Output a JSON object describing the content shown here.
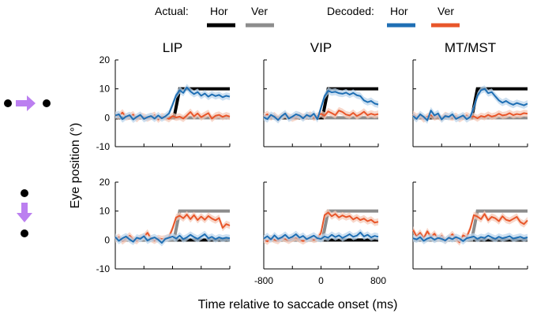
{
  "legend": {
    "actual_label": "Actual:",
    "decoded_label": "Decoded:",
    "entries": [
      {
        "group": "actual",
        "label": "Hor",
        "color": "#000000"
      },
      {
        "group": "actual",
        "label": "Ver",
        "color": "#8c8c8c"
      },
      {
        "group": "decoded",
        "label": "Hor",
        "color": "#1f6fb4"
      },
      {
        "group": "decoded",
        "label": "Ver",
        "color": "#e8562a"
      }
    ]
  },
  "ylabel": "Eye position (°)",
  "xlabel": "Time relative to saccade onset (ms)",
  "colors": {
    "actual_hor": "#000000",
    "actual_ver": "#8c8c8c",
    "decoded_hor": "#1f6fb4",
    "decoded_ver": "#e8562a",
    "band_hor": "#bcd6ec",
    "band_ver": "#f6c9b8",
    "saccade_icon": "#bb7ff0"
  },
  "chart_data": {
    "type": "line",
    "columns": [
      "LIP",
      "VIP",
      "MT/MST"
    ],
    "rows": [
      {
        "condition": "horizontal saccade",
        "actual_hor": 10,
        "actual_ver": 0
      },
      {
        "condition": "vertical saccade",
        "actual_hor": 0,
        "actual_ver": 10
      }
    ],
    "xlim": [
      -800,
      800
    ],
    "ylim": [
      -10,
      20
    ],
    "yticks": [
      -10,
      0,
      10,
      20
    ],
    "xtick_labels": [
      "-800",
      "0",
      "800"
    ],
    "x": [
      -800,
      -750,
      -700,
      -650,
      -600,
      -550,
      -500,
      -450,
      -400,
      -350,
      -300,
      -250,
      -200,
      -150,
      -100,
      -50,
      0,
      50,
      100,
      150,
      200,
      250,
      300,
      350,
      400,
      450,
      500,
      550,
      600,
      650,
      700,
      750,
      800
    ],
    "panels": [
      {
        "row": 0,
        "col": 0,
        "decoded_hor": [
          0.8,
          1.2,
          -0.5,
          0.4,
          0.9,
          -0.6,
          0.3,
          1.0,
          -0.4,
          0.2,
          0.6,
          -0.3,
          0.8,
          -0.2,
          0.5,
          1.5,
          4.5,
          7.8,
          9.5,
          8.6,
          10.5,
          9.1,
          8.2,
          8.9,
          7.6,
          8.4,
          7.3,
          8.1,
          7.5,
          7.9,
          7.1,
          7.6,
          7.3
        ],
        "decoded_ver": [
          1.0,
          0.6,
          1.8,
          0.2,
          0.5,
          1.1,
          -0.4,
          0.7,
          0.3,
          -0.2,
          0.4,
          0.9,
          -0.6,
          0.5,
          0.2,
          -0.4,
          0.6,
          0.1,
          0.4,
          -0.3,
          0.8,
          2.0,
          0.5,
          1.5,
          0.2,
          0.9,
          1.6,
          -0.3,
          0.7,
          1.0,
          0.3,
          0.8,
          0.4
        ]
      },
      {
        "row": 0,
        "col": 1,
        "decoded_hor": [
          0.2,
          -0.5,
          1.0,
          0.3,
          -0.8,
          0.6,
          1.5,
          -0.3,
          0.4,
          1.2,
          0.8,
          -0.2,
          1.0,
          0.4,
          1.4,
          -0.5,
          3.5,
          7.5,
          9.3,
          8.8,
          9.0,
          8.5,
          8.3,
          8.7,
          8.0,
          8.6,
          7.8,
          7.5,
          6.0,
          5.4,
          5.8,
          4.9,
          4.6
        ],
        "decoded_ver": [
          0.5,
          1.2,
          0.2,
          0.8,
          -0.3,
          0.6,
          1.0,
          0.4,
          -0.2,
          0.3,
          0.8,
          0.2,
          0.5,
          1.0,
          0.1,
          0.6,
          1.4,
          0.7,
          2.2,
          1.6,
          0.9,
          2.5,
          2.0,
          1.1,
          0.8,
          1.7,
          0.6,
          1.2,
          2.1,
          0.9,
          1.4,
          1.0,
          1.3
        ]
      },
      {
        "row": 0,
        "col": 2,
        "decoded_hor": [
          0.6,
          -0.4,
          1.2,
          0.3,
          -0.9,
          2.5,
          0.8,
          1.5,
          -0.6,
          0.6,
          0.3,
          1.2,
          -0.4,
          0.2,
          0.8,
          -0.5,
          0.3,
          3.5,
          7.6,
          9.5,
          10.0,
          8.5,
          8.9,
          7.4,
          6.0,
          5.2,
          5.8,
          5.0,
          4.5,
          5.1,
          4.7,
          4.3,
          4.9
        ],
        "decoded_ver": [
          1.2,
          0.3,
          0.7,
          -0.5,
          0.4,
          1.0,
          0.2,
          0.6,
          -0.3,
          0.9,
          0.4,
          0.1,
          0.6,
          -0.4,
          0.3,
          0.8,
          0.2,
          0.5,
          -0.2,
          0.6,
          0.3,
          1.0,
          0.4,
          0.7,
          1.4,
          0.8,
          1.0,
          1.6,
          0.9,
          1.3,
          1.1,
          1.6,
          1.4
        ]
      },
      {
        "row": 1,
        "col": 0,
        "decoded_hor": [
          1.0,
          -0.3,
          0.6,
          1.2,
          0.2,
          -0.6,
          0.8,
          0.4,
          1.3,
          -0.2,
          0.5,
          0.9,
          0.1,
          -1.0,
          0.4,
          0.8,
          1.2,
          0.5,
          1.5,
          0.3,
          0.9,
          1.8,
          1.0,
          0.4,
          1.2,
          2.0,
          0.6,
          1.1,
          0.3,
          0.9,
          0.5,
          0.8,
          0.6
        ],
        "decoded_ver": [
          0.3,
          1.0,
          -0.4,
          0.5,
          1.5,
          0.2,
          -0.3,
          0.8,
          1.1,
          2.5,
          0.4,
          -0.2,
          0.6,
          0.3,
          0.5,
          1.0,
          4.0,
          7.8,
          8.4,
          7.5,
          8.8,
          7.2,
          8.6,
          6.9,
          8.1,
          7.0,
          8.3,
          7.4,
          6.8,
          7.6,
          4.2,
          5.5,
          5.0
        ]
      },
      {
        "row": 1,
        "col": 1,
        "decoded_hor": [
          0.5,
          1.3,
          0.2,
          1.6,
          0.4,
          0.9,
          1.8,
          0.6,
          1.1,
          2.0,
          0.8,
          1.4,
          0.3,
          0.9,
          1.5,
          0.6,
          0.4,
          1.2,
          0.8,
          1.8,
          1.0,
          1.6,
          0.7,
          1.3,
          2.0,
          1.1,
          1.5,
          2.6,
          1.2,
          1.8,
          0.9,
          1.4,
          1.1
        ],
        "decoded_ver": [
          0.2,
          -0.5,
          0.6,
          0.1,
          -0.3,
          0.8,
          0.4,
          -0.2,
          0.5,
          0.9,
          0.2,
          -0.4,
          0.3,
          0.7,
          0.1,
          0.5,
          2.5,
          8.6,
          9.5,
          8.2,
          9.0,
          7.8,
          8.5,
          7.9,
          8.3,
          7.1,
          7.8,
          6.9,
          7.4,
          6.5,
          7.0,
          6.0,
          6.3
        ]
      },
      {
        "row": 1,
        "col": 2,
        "decoded_hor": [
          0.6,
          0.2,
          1.0,
          -0.3,
          0.5,
          0.9,
          0.1,
          0.7,
          0.4,
          -0.2,
          0.8,
          0.3,
          1.0,
          0.5,
          -0.4,
          0.6,
          0.9,
          1.2,
          0.4,
          1.0,
          0.7,
          1.5,
          0.9,
          0.4,
          1.1,
          0.6,
          0.9,
          1.3,
          0.5,
          0.8,
          1.1,
          0.6,
          0.9
        ],
        "decoded_ver": [
          3.5,
          1.2,
          2.5,
          0.6,
          3.0,
          1.0,
          2.2,
          0.4,
          1.5,
          -0.3,
          0.8,
          2.0,
          0.5,
          -0.8,
          1.6,
          1.0,
          4.0,
          8.6,
          8.1,
          7.2,
          9.0,
          6.8,
          8.0,
          7.5,
          6.5,
          8.2,
          7.0,
          6.6,
          7.3,
          8.0,
          6.2,
          5.5,
          6.8
        ]
      }
    ]
  }
}
